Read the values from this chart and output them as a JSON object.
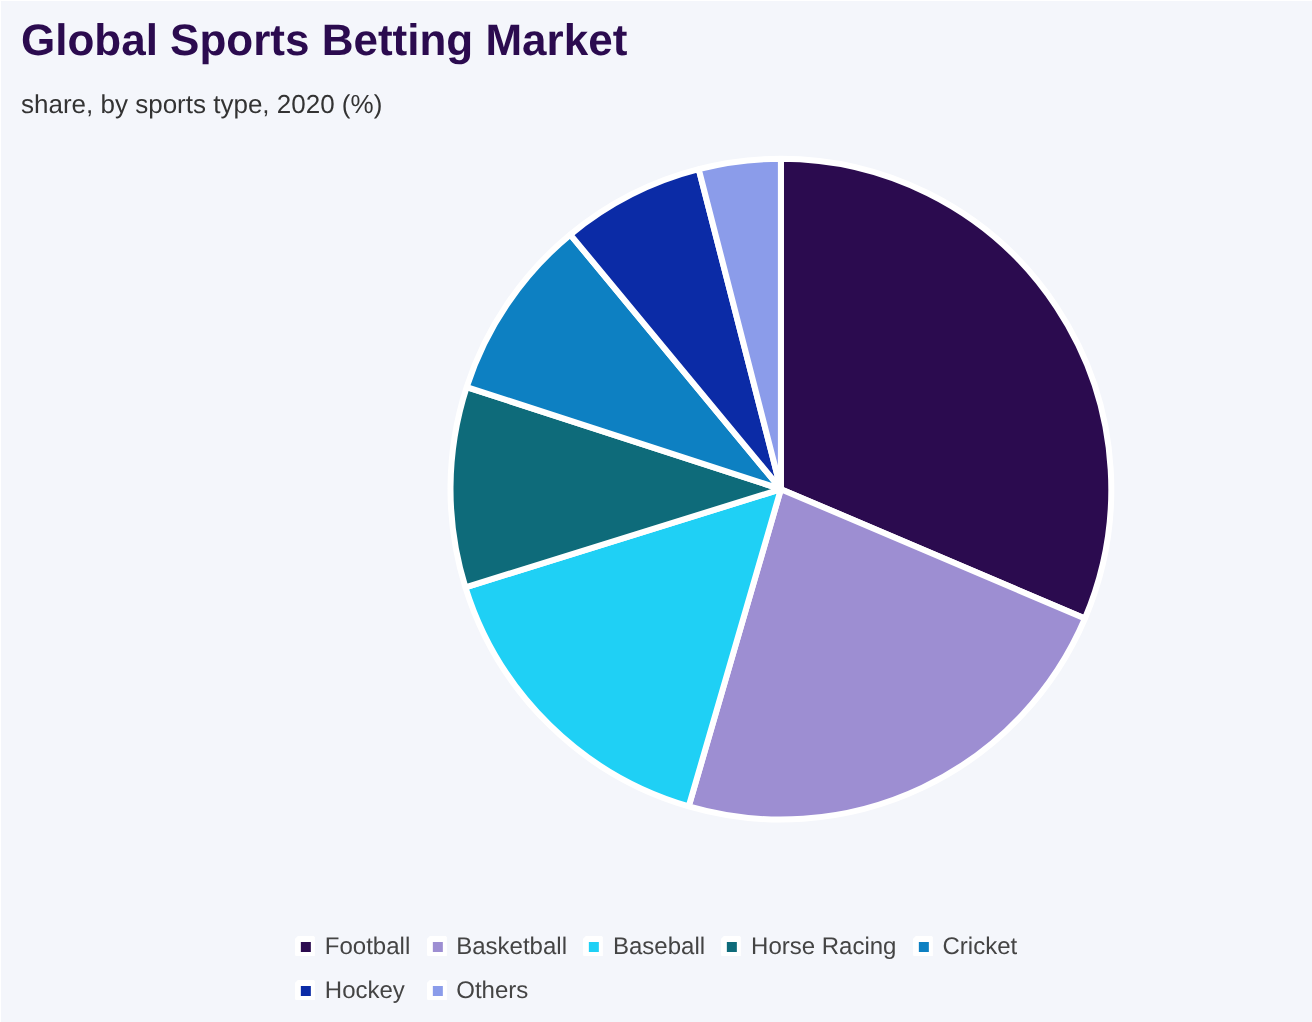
{
  "chart_data": {
    "type": "pie",
    "title": "Global Sports Betting Market",
    "subtitle": "share, by sports type, 2020 (%)",
    "categories": [
      "Football",
      "Basketball",
      "Baseball",
      "Horse Racing",
      "Cricket",
      "Hockey",
      "Others"
    ],
    "values": [
      31.4,
      23.1,
      15.7,
      9.8,
      9.0,
      7.0,
      4.0
    ],
    "colors": [
      "#2b0b4f",
      "#9d8ed2",
      "#1fd0f5",
      "#0e6b7a",
      "#0d80c2",
      "#0b2ba6",
      "#8b9cea"
    ],
    "legend": "bottom"
  }
}
